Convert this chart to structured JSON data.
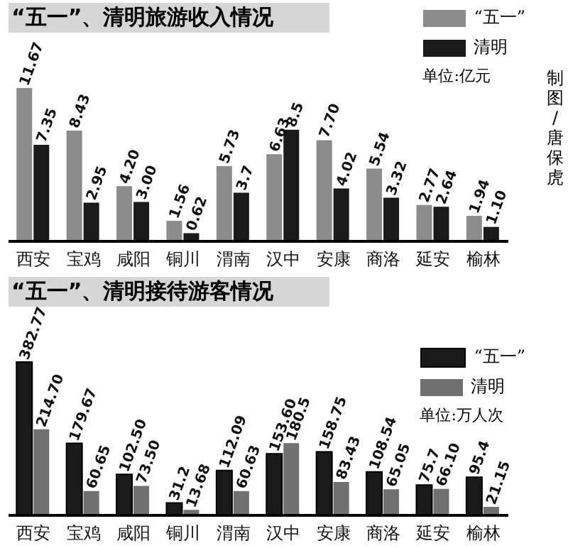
{
  "chart_data": [
    {
      "type": "bar",
      "title": "“五一”、清明旅游收入情况",
      "categories": [
        "西安",
        "宝鸡",
        "咸阳",
        "铜川",
        "渭南",
        "汉中",
        "安康",
        "商洛",
        "延安",
        "榆林"
      ],
      "series": [
        {
          "name": "“五一”",
          "color": "#8c8c8c",
          "values": [
            11.67,
            8.43,
            4.2,
            1.56,
            5.73,
            6.63,
            7.7,
            5.54,
            2.77,
            1.94
          ],
          "value_labels": [
            "11.67",
            "8.43",
            "4.20",
            "1.56",
            "5.73",
            "6.63",
            "7.70",
            "5.54",
            "2.77",
            "1.94"
          ]
        },
        {
          "name": "清明",
          "color": "#1a1a1a",
          "values": [
            7.35,
            2.95,
            3.0,
            0.62,
            3.7,
            8.5,
            4.02,
            3.32,
            2.64,
            1.1
          ],
          "value_labels": [
            "7.35",
            "2.95",
            "3.00",
            "0.62",
            "3.7",
            "8.5",
            "4.02",
            "3.32",
            "2.64",
            "1.10"
          ]
        }
      ],
      "legend": "top right",
      "annotations": [
        "单位:亿元",
        "制图/唐保虎"
      ]
    },
    {
      "type": "bar",
      "title": "“五一”、清明接待游客情况",
      "categories": [
        "西安",
        "宝鸡",
        "咸阳",
        "铜川",
        "渭南",
        "汉中",
        "安康",
        "商洛",
        "延安",
        "榆林"
      ],
      "series": [
        {
          "name": "“五一”",
          "color": "#1a1a1a",
          "values": [
            382.77,
            179.67,
            102.5,
            31.2,
            112.09,
            153.6,
            158.75,
            108.54,
            75.7,
            95.4
          ],
          "value_labels": [
            "382.77",
            "179.67",
            "102.50",
            "31.2",
            "112.09",
            "153.60",
            "158.75",
            "108.54",
            "75.7",
            "95.4"
          ]
        },
        {
          "name": "清明",
          "color": "#707070",
          "values": [
            214.7,
            60.65,
            73.5,
            13.68,
            60.63,
            180.5,
            83.43,
            65.05,
            66.1,
            21.15
          ],
          "value_labels": [
            "214.70",
            "60.65",
            "73.50",
            "13.68",
            "60.63",
            "180.5",
            "83.43",
            "65.05",
            "66.10",
            "21.15"
          ]
        }
      ],
      "legend": "right",
      "annotations": [
        "单位:万人次"
      ]
    }
  ]
}
